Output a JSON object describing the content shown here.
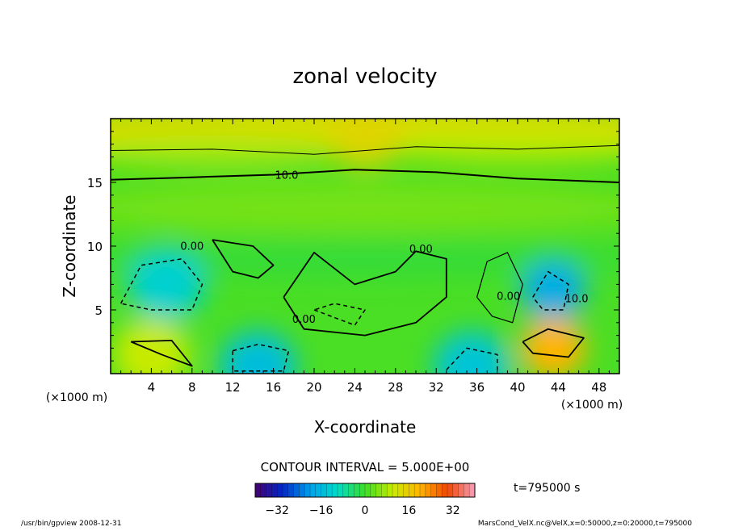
{
  "chart_data": {
    "type": "heatmap",
    "title": "zonal velocity",
    "xlabel": "X-coordinate",
    "ylabel": "Z-coordinate",
    "x_unit_label_left": "(×1000 m)",
    "x_unit_label_right": "(×1000 m)",
    "x_ticks": [
      "4",
      "8",
      "12",
      "16",
      "20",
      "24",
      "28",
      "32",
      "36",
      "40",
      "44",
      "48"
    ],
    "x_tick_values": [
      4,
      8,
      12,
      16,
      20,
      24,
      28,
      32,
      36,
      40,
      44,
      48
    ],
    "y_ticks": [
      "5",
      "10",
      "15"
    ],
    "y_tick_values": [
      5,
      10,
      15
    ],
    "xlim": [
      0,
      50
    ],
    "ylim": [
      0,
      20
    ],
    "contour_labels": [
      {
        "text": "10.0",
        "x": 17.3,
        "y": 15.3
      },
      {
        "text": "0.00",
        "x": 8.0,
        "y": 9.7
      },
      {
        "text": "0.00",
        "x": 30.5,
        "y": 9.5
      },
      {
        "text": "0.00",
        "x": 19.0,
        "y": 4.0
      },
      {
        "text": "0.00",
        "x": 39.1,
        "y": 5.8
      },
      {
        "text": "10.0",
        "x": 45.8,
        "y": 5.6
      }
    ],
    "contour_interval_text": "CONTOUR INTERVAL = 5.000E+00",
    "time_label": "t=795000  s",
    "colorbar": {
      "range": [
        -40,
        40
      ],
      "tick_labels": [
        "−32",
        "−16",
        "0",
        "16",
        "32"
      ],
      "tick_values": [
        -32,
        -16,
        0,
        16,
        32
      ]
    },
    "field_extrema": [
      {
        "label": "jet top (positive)",
        "x": 25,
        "y": 19,
        "value": 14
      },
      {
        "label": "negative cell left",
        "x": 5.5,
        "y": 7,
        "value": -12
      },
      {
        "label": "negative cell right",
        "x": 43.5,
        "y": 6.5,
        "value": -18
      },
      {
        "label": "negative cell bottom",
        "x": 14.5,
        "y": 0.5,
        "value": -15
      },
      {
        "label": "negative cell bottom right",
        "x": 35.5,
        "y": 0.5,
        "value": -14
      },
      {
        "label": "positive cell bottom right",
        "x": 43.5,
        "y": 2.0,
        "value": 20
      },
      {
        "label": "positive cell bottom left",
        "x": 4.0,
        "y": 1.5,
        "value": 10
      }
    ]
  },
  "footer": {
    "left": "/usr/bin/gpview   2008-12-31",
    "right": "MarsCond_VelX.nc@VelX,x=0:50000,z=0:20000,t=795000"
  }
}
